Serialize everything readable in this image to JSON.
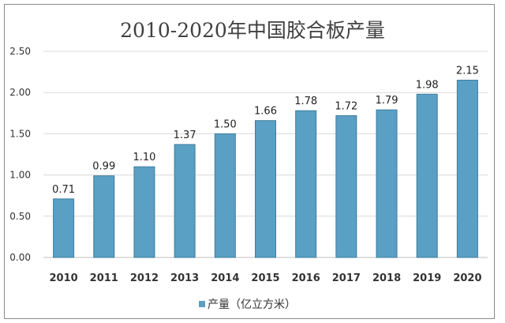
{
  "chart_data": {
    "type": "bar",
    "title": "2010-2020年中国胶合板产量",
    "categories": [
      "2010",
      "2011",
      "2012",
      "2013",
      "2014",
      "2015",
      "2016",
      "2017",
      "2018",
      "2019",
      "2020"
    ],
    "series": [
      {
        "name": "产量（亿立方米）",
        "values": [
          0.71,
          0.99,
          1.1,
          1.37,
          1.5,
          1.66,
          1.78,
          1.72,
          1.79,
          1.98,
          2.15
        ]
      }
    ],
    "data_labels": [
      "0.71",
      "0.99",
      "1.10",
      "1.37",
      "1.50",
      "1.66",
      "1.78",
      "1.72",
      "1.79",
      "1.98",
      "2.15"
    ],
    "yticks": [
      "0.00",
      "0.50",
      "1.00",
      "1.50",
      "2.00",
      "2.50"
    ],
    "ylim": [
      0,
      2.5
    ],
    "xlabel": "",
    "ylabel": "",
    "grid": true,
    "legend_position": "bottom",
    "bar_color": "#5a9fc4",
    "bar_edge_color": "#3f7c9e"
  }
}
